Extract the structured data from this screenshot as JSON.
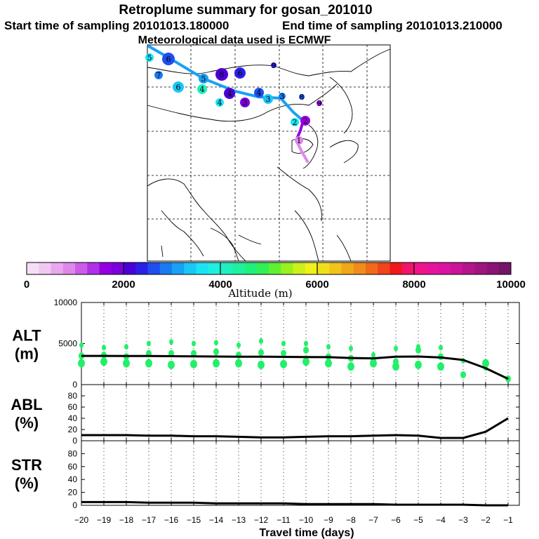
{
  "title": {
    "line1": "Retroplume summary for gosan_201010",
    "line2_start": "Start time of sampling 20101013.180000",
    "line2_end": "End time of sampling 20101013.210000",
    "line3": "Meteorological data used is ECMWF"
  },
  "colorbar": {
    "label": "Altitude  (m)",
    "ticks": [
      "0",
      "2000",
      "4000",
      "6000",
      "8000",
      "10000"
    ],
    "colors": [
      "#f6def6",
      "#f0c8f0",
      "#e8a8ee",
      "#de88ea",
      "#cc5ce8",
      "#b030e6",
      "#9400e2",
      "#7a00dc",
      "#4a00d6",
      "#2a20e8",
      "#1e4ef0",
      "#1a7af2",
      "#1aa0f4",
      "#1ac6f6",
      "#1ae4f4",
      "#1ef0e0",
      "#1ef0c0",
      "#1ef09e",
      "#1ef07a",
      "#30f056",
      "#60f032",
      "#98f01e",
      "#ccf01a",
      "#f0f01a",
      "#f0e01a",
      "#f0c41a",
      "#f0a81a",
      "#f08c1a",
      "#f06a1a",
      "#f0441a",
      "#f0181a",
      "#f0146a",
      "#f0148a",
      "#e6149c",
      "#d814a0",
      "#c81496",
      "#b4148c",
      "#a01480",
      "#8a1474",
      "#741468"
    ]
  },
  "map": {
    "trajectory_labels": [
      "1",
      "2",
      "3",
      "4",
      "5",
      "6",
      "7",
      "8",
      "9"
    ],
    "cluster_markers": [
      {
        "n": "5",
        "c": "#1ae4f4"
      },
      {
        "n": "6",
        "c": "#1e4ef0"
      },
      {
        "n": "7",
        "c": "#1a7af2"
      },
      {
        "n": "5",
        "c": "#1aa0f4"
      },
      {
        "n": "8",
        "c": "#4a00d6"
      },
      {
        "n": "6",
        "c": "#2a20e8"
      },
      {
        "n": "9",
        "c": "#2a20e8"
      },
      {
        "n": "6",
        "c": "#1ac6f6"
      },
      {
        "n": "4",
        "c": "#1ef0c0"
      },
      {
        "n": "4",
        "c": "#4a00d6"
      },
      {
        "n": "4",
        "c": "#1e4ef0"
      },
      {
        "n": "3",
        "c": "#1a7af2"
      },
      {
        "n": "8",
        "c": "#1e4ef0"
      },
      {
        "n": "4",
        "c": "#1ae4f4"
      },
      {
        "n": "3",
        "c": "#7a00dc"
      },
      {
        "n": "3",
        "c": "#1ac6f6"
      },
      {
        "n": "9",
        "c": "#9400e2"
      },
      {
        "n": "2",
        "c": "#9400e2"
      },
      {
        "n": "2",
        "c": "#1ae4f4"
      },
      {
        "n": "1",
        "c": "#de88ea"
      }
    ]
  },
  "chart_data": [
    {
      "type": "scatter",
      "panel": "ALT",
      "ylabel_line1": "ALT",
      "ylabel_line2": "(m)",
      "ylim": [
        0,
        10000
      ],
      "yticks": [
        "10000",
        "5000",
        "0"
      ],
      "ytick_values": [
        10000,
        5000,
        0
      ],
      "xlim": [
        -20,
        -1
      ],
      "mean_line": {
        "x": [
          -20,
          -19,
          -18,
          -17,
          -16,
          -15,
          -14,
          -13,
          -12,
          -11,
          -10,
          -9,
          -8,
          -7,
          -6,
          -5,
          -4,
          -3,
          -2,
          -1
        ],
        "y": [
          3500,
          3500,
          3480,
          3480,
          3460,
          3440,
          3420,
          3400,
          3400,
          3380,
          3360,
          3340,
          3240,
          3200,
          3400,
          3420,
          3300,
          3000,
          2000,
          700
        ]
      },
      "points": [
        {
          "x": -20,
          "y": 4800
        },
        {
          "x": -20,
          "y": 3500
        },
        {
          "x": -20,
          "y": 2600
        },
        {
          "x": -19,
          "y": 4500
        },
        {
          "x": -19,
          "y": 3600
        },
        {
          "x": -19,
          "y": 2800
        },
        {
          "x": -18,
          "y": 4600
        },
        {
          "x": -18,
          "y": 3400
        },
        {
          "x": -18,
          "y": 2600
        },
        {
          "x": -17,
          "y": 5000
        },
        {
          "x": -17,
          "y": 3800
        },
        {
          "x": -17,
          "y": 2600
        },
        {
          "x": -16,
          "y": 5200
        },
        {
          "x": -16,
          "y": 3800
        },
        {
          "x": -16,
          "y": 2400
        },
        {
          "x": -15,
          "y": 5000
        },
        {
          "x": -15,
          "y": 3800
        },
        {
          "x": -15,
          "y": 2500
        },
        {
          "x": -14,
          "y": 5100
        },
        {
          "x": -14,
          "y": 4000
        },
        {
          "x": -14,
          "y": 2600
        },
        {
          "x": -13,
          "y": 4800
        },
        {
          "x": -13,
          "y": 3600
        },
        {
          "x": -13,
          "y": 2600
        },
        {
          "x": -12,
          "y": 5300
        },
        {
          "x": -12,
          "y": 3900
        },
        {
          "x": -12,
          "y": 2400
        },
        {
          "x": -11,
          "y": 5000
        },
        {
          "x": -11,
          "y": 3800
        },
        {
          "x": -11,
          "y": 2500
        },
        {
          "x": -10,
          "y": 5000
        },
        {
          "x": -10,
          "y": 4200
        },
        {
          "x": -10,
          "y": 2800
        },
        {
          "x": -9,
          "y": 4600
        },
        {
          "x": -9,
          "y": 3400
        },
        {
          "x": -9,
          "y": 2600
        },
        {
          "x": -8,
          "y": 4400
        },
        {
          "x": -8,
          "y": 3200
        },
        {
          "x": -8,
          "y": 2200
        },
        {
          "x": -7,
          "y": 3600
        },
        {
          "x": -7,
          "y": 3000
        },
        {
          "x": -7,
          "y": 2600
        },
        {
          "x": -6,
          "y": 4400
        },
        {
          "x": -6,
          "y": 2800
        },
        {
          "x": -6,
          "y": 2200
        },
        {
          "x": -5,
          "y": 4600
        },
        {
          "x": -5,
          "y": 4200
        },
        {
          "x": -5,
          "y": 2400
        },
        {
          "x": -4,
          "y": 4500
        },
        {
          "x": -4,
          "y": 3400
        },
        {
          "x": -4,
          "y": 2200
        },
        {
          "x": -3,
          "y": 2900
        },
        {
          "x": -3,
          "y": 1200
        },
        {
          "x": -2,
          "y": 2600
        },
        {
          "x": -2,
          "y": 2000
        },
        {
          "x": -1,
          "y": 700
        }
      ]
    },
    {
      "type": "line",
      "panel": "ABL",
      "ylabel_line1": "ABL",
      "ylabel_line2": "(%)",
      "ylim": [
        0,
        100
      ],
      "yticks": [
        "80",
        "60",
        "40",
        "20",
        "0"
      ],
      "ytick_values": [
        80,
        60,
        40,
        20,
        0
      ],
      "xlim": [
        -20,
        -1
      ],
      "x": [
        -20,
        -19,
        -18,
        -17,
        -16,
        -15,
        -14,
        -13,
        -12,
        -11,
        -10,
        -9,
        -8,
        -7,
        -6,
        -5,
        -4,
        -3,
        -2,
        -1
      ],
      "y": [
        10,
        10,
        10,
        9,
        9,
        8,
        8,
        7,
        6,
        6,
        7,
        8,
        8,
        9,
        10,
        9,
        5,
        5,
        16,
        40
      ]
    },
    {
      "type": "line",
      "panel": "STR",
      "ylabel_line1": "STR",
      "ylabel_line2": "(%)",
      "ylim": [
        0,
        100
      ],
      "yticks": [
        "80",
        "60",
        "40",
        "20",
        "0"
      ],
      "ytick_values": [
        80,
        60,
        40,
        20,
        0
      ],
      "xlim": [
        -20,
        -1
      ],
      "xlabel": "Travel time (days)",
      "xticks": [
        "−20",
        "−19",
        "−18",
        "−17",
        "−16",
        "−15",
        "−14",
        "−13",
        "−12",
        "−11",
        "−10",
        "−9",
        "−8",
        "−7",
        "−6",
        "−5",
        "−4",
        "−3",
        "−2",
        "−1"
      ],
      "xtick_values": [
        -20,
        -19,
        -18,
        -17,
        -16,
        -15,
        -14,
        -13,
        -12,
        -11,
        -10,
        -9,
        -8,
        -7,
        -6,
        -5,
        -4,
        -3,
        -2,
        -1
      ],
      "x": [
        -20,
        -19,
        -18,
        -17,
        -16,
        -15,
        -14,
        -13,
        -12,
        -11,
        -10,
        -9,
        -8,
        -7,
        -6,
        -5,
        -4,
        -3,
        -2,
        -1
      ],
      "y": [
        5,
        5,
        5,
        4,
        4,
        4,
        3,
        3,
        3,
        3,
        2,
        2,
        2,
        2,
        1,
        1,
        1,
        1,
        0,
        0
      ]
    }
  ]
}
